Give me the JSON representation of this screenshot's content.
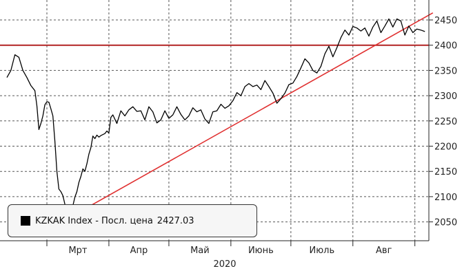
{
  "chart_data": {
    "type": "line",
    "title": "",
    "xlabel": "2020",
    "ylabel": "",
    "x_tick_labels": [
      "Мрт",
      "Апр",
      "Май",
      "Июнь",
      "Июль",
      "Авг"
    ],
    "y_ticks": [
      2050,
      2100,
      2150,
      2200,
      2250,
      2300,
      2350,
      2400,
      2450
    ],
    "ylim": [
      2015,
      2475
    ],
    "y_axis_side": "right",
    "grid": true,
    "legend_position": "bottom-left",
    "legend": {
      "label": "KZKAK Index - Посл. цена",
      "last_value_label": "2427.03",
      "swatch_color": "#000000"
    },
    "series": [
      {
        "name": "KZKAK Index - Посл. цена",
        "color": "#000000",
        "points": [
          [
            "2020-02-10",
            2336
          ],
          [
            "2020-02-12",
            2350
          ],
          [
            "2020-02-14",
            2381
          ],
          [
            "2020-02-16",
            2376
          ],
          [
            "2020-02-18",
            2350
          ],
          [
            "2020-02-20",
            2336
          ],
          [
            "2020-02-22",
            2320
          ],
          [
            "2020-02-24",
            2310
          ],
          [
            "2020-02-25",
            2280
          ],
          [
            "2020-02-26",
            2233
          ],
          [
            "2020-02-27",
            2245
          ],
          [
            "2020-02-28",
            2260
          ],
          [
            "2020-02-29",
            2282
          ],
          [
            "2020-03-01",
            2288
          ],
          [
            "2020-03-02",
            2287
          ],
          [
            "2020-03-03",
            2274
          ],
          [
            "2020-03-04",
            2260
          ],
          [
            "2020-03-05",
            2210
          ],
          [
            "2020-03-06",
            2150
          ],
          [
            "2020-03-07",
            2115
          ],
          [
            "2020-03-08",
            2110
          ],
          [
            "2020-03-09",
            2102
          ],
          [
            "2020-03-10",
            2085
          ],
          [
            "2020-03-11",
            2070
          ],
          [
            "2020-03-12",
            2062
          ],
          [
            "2020-03-13",
            2070
          ],
          [
            "2020-03-14",
            2082
          ],
          [
            "2020-03-15",
            2099
          ],
          [
            "2020-03-16",
            2110
          ],
          [
            "2020-03-17",
            2128
          ],
          [
            "2020-03-18",
            2140
          ],
          [
            "2020-03-19",
            2155
          ],
          [
            "2020-03-20",
            2150
          ],
          [
            "2020-03-21",
            2165
          ],
          [
            "2020-03-22",
            2184
          ],
          [
            "2020-03-23",
            2197
          ],
          [
            "2020-03-24",
            2220
          ],
          [
            "2020-03-25",
            2215
          ],
          [
            "2020-03-26",
            2222
          ],
          [
            "2020-03-27",
            2218
          ],
          [
            "2020-03-28",
            2221
          ],
          [
            "2020-03-30",
            2225
          ],
          [
            "2020-03-31",
            2230
          ],
          [
            "2020-04-01",
            2226
          ],
          [
            "2020-04-02",
            2257
          ],
          [
            "2020-04-03",
            2262
          ],
          [
            "2020-04-05",
            2245
          ],
          [
            "2020-04-07",
            2270
          ],
          [
            "2020-04-09",
            2260
          ],
          [
            "2020-04-11",
            2272
          ],
          [
            "2020-04-13",
            2278
          ],
          [
            "2020-04-15",
            2269
          ],
          [
            "2020-04-17",
            2270
          ],
          [
            "2020-04-19",
            2252
          ],
          [
            "2020-04-21",
            2278
          ],
          [
            "2020-04-23",
            2268
          ],
          [
            "2020-04-25",
            2246
          ],
          [
            "2020-04-27",
            2252
          ],
          [
            "2020-04-29",
            2270
          ],
          [
            "2020-05-01",
            2255
          ],
          [
            "2020-05-03",
            2262
          ],
          [
            "2020-05-05",
            2278
          ],
          [
            "2020-05-07",
            2263
          ],
          [
            "2020-05-09",
            2252
          ],
          [
            "2020-05-11",
            2260
          ],
          [
            "2020-05-13",
            2276
          ],
          [
            "2020-05-15",
            2268
          ],
          [
            "2020-05-17",
            2272
          ],
          [
            "2020-05-19",
            2254
          ],
          [
            "2020-05-21",
            2245
          ],
          [
            "2020-05-23",
            2268
          ],
          [
            "2020-05-25",
            2270
          ],
          [
            "2020-05-27",
            2283
          ],
          [
            "2020-05-29",
            2275
          ],
          [
            "2020-05-31",
            2280
          ],
          [
            "2020-06-02",
            2290
          ],
          [
            "2020-06-04",
            2306
          ],
          [
            "2020-06-06",
            2300
          ],
          [
            "2020-06-08",
            2318
          ],
          [
            "2020-06-10",
            2324
          ],
          [
            "2020-06-12",
            2318
          ],
          [
            "2020-06-14",
            2321
          ],
          [
            "2020-06-16",
            2312
          ],
          [
            "2020-06-18",
            2330
          ],
          [
            "2020-06-20",
            2318
          ],
          [
            "2020-06-22",
            2305
          ],
          [
            "2020-06-24",
            2285
          ],
          [
            "2020-06-26",
            2294
          ],
          [
            "2020-06-28",
            2305
          ],
          [
            "2020-06-30",
            2322
          ],
          [
            "2020-07-02",
            2325
          ],
          [
            "2020-07-04",
            2338
          ],
          [
            "2020-07-06",
            2355
          ],
          [
            "2020-07-08",
            2373
          ],
          [
            "2020-07-10",
            2365
          ],
          [
            "2020-07-12",
            2350
          ],
          [
            "2020-07-14",
            2345
          ],
          [
            "2020-07-16",
            2358
          ],
          [
            "2020-07-18",
            2383
          ],
          [
            "2020-07-20",
            2398
          ],
          [
            "2020-07-22",
            2377
          ],
          [
            "2020-07-24",
            2395
          ],
          [
            "2020-07-26",
            2415
          ],
          [
            "2020-07-28",
            2430
          ],
          [
            "2020-07-30",
            2420
          ],
          [
            "2020-08-01",
            2437
          ],
          [
            "2020-08-03",
            2434
          ],
          [
            "2020-08-05",
            2428
          ],
          [
            "2020-08-07",
            2434
          ],
          [
            "2020-08-09",
            2418
          ],
          [
            "2020-08-11",
            2436
          ],
          [
            "2020-08-13",
            2448
          ],
          [
            "2020-08-15",
            2425
          ],
          [
            "2020-08-17",
            2438
          ],
          [
            "2020-08-19",
            2452
          ],
          [
            "2020-08-21",
            2436
          ],
          [
            "2020-08-23",
            2452
          ],
          [
            "2020-08-25",
            2448
          ],
          [
            "2020-08-27",
            2420
          ],
          [
            "2020-08-29",
            2438
          ],
          [
            "2020-08-31",
            2425
          ],
          [
            "2020-09-02",
            2432
          ],
          [
            "2020-09-04",
            2430
          ],
          [
            "2020-09-06",
            2427
          ]
        ]
      }
    ],
    "reference_lines": [
      {
        "type": "horizontal",
        "value": 2400,
        "color": "#b22222"
      },
      {
        "type": "trend",
        "from": [
          "2020-03-12",
          2058
        ],
        "to": [
          "2020-09-10",
          2464
        ],
        "color": "#e03030"
      }
    ]
  }
}
